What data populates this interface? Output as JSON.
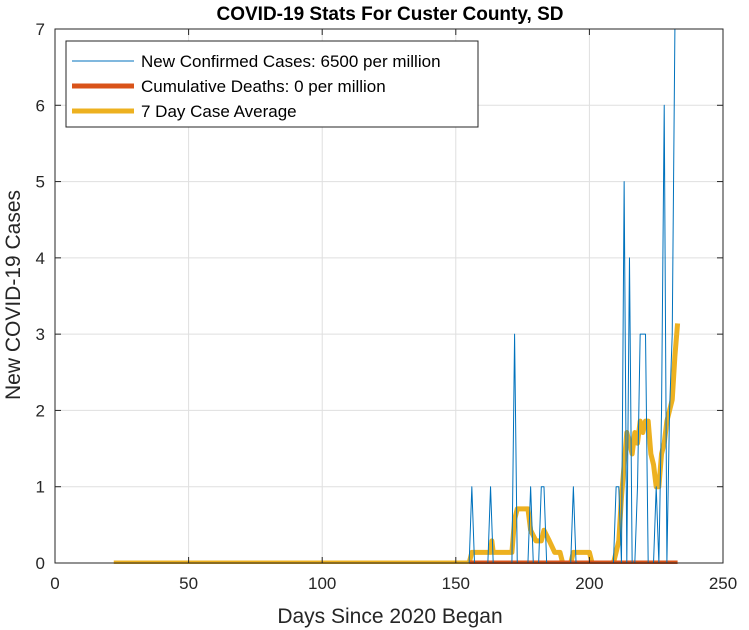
{
  "chart_data": {
    "type": "line",
    "title": "COVID-19 Stats For Custer County, SD",
    "xlabel": "Days Since 2020 Began",
    "ylabel": "New COVID-19 Cases",
    "xlim": [
      0,
      250
    ],
    "ylim": [
      0,
      7
    ],
    "xticks": [
      0,
      50,
      100,
      150,
      200,
      250
    ],
    "yticks": [
      0,
      1,
      2,
      3,
      4,
      5,
      6,
      7
    ],
    "grid": true,
    "legend_position": "top-left",
    "series": [
      {
        "name": "New Confirmed Cases: 6500 per million",
        "color": "#0072BD",
        "line_width": 1,
        "points": [
          [
            155,
            0
          ],
          [
            156,
            1
          ],
          [
            157,
            0
          ],
          [
            162,
            0
          ],
          [
            163,
            1
          ],
          [
            164,
            0
          ],
          [
            171,
            0
          ],
          [
            172,
            3
          ],
          [
            173,
            0
          ],
          [
            177,
            0
          ],
          [
            178,
            1
          ],
          [
            179,
            0
          ],
          [
            181,
            0
          ],
          [
            182,
            1
          ],
          [
            183,
            1
          ],
          [
            184,
            0
          ],
          [
            193,
            0
          ],
          [
            194,
            1
          ],
          [
            195,
            0
          ],
          [
            209,
            0
          ],
          [
            210,
            1
          ],
          [
            211,
            1
          ],
          [
            212,
            0
          ],
          [
            213,
            5
          ],
          [
            214,
            0
          ],
          [
            215,
            4
          ],
          [
            216,
            0
          ],
          [
            217,
            0
          ],
          [
            218,
            1
          ],
          [
            219,
            3
          ],
          [
            220,
            3
          ],
          [
            221,
            3
          ],
          [
            222,
            0
          ],
          [
            224,
            0
          ],
          [
            225,
            1
          ],
          [
            226,
            0
          ],
          [
            227,
            2
          ],
          [
            228,
            6
          ],
          [
            229,
            0
          ],
          [
            230,
            2
          ],
          [
            231,
            3
          ],
          [
            232,
            7
          ]
        ]
      },
      {
        "name": "Cumulative Deaths: 0 per million",
        "color": "#D95319",
        "line_width": 5,
        "points": [
          [
            155,
            0
          ],
          [
            233,
            0
          ]
        ]
      },
      {
        "name": "7 Day Case Average",
        "color": "#EDB120",
        "line_width": 5,
        "points": [
          [
            22,
            0
          ],
          [
            155,
            0
          ],
          [
            156,
            0.14
          ],
          [
            162,
            0.14
          ],
          [
            163,
            0.14
          ],
          [
            163.5,
            0.29
          ],
          [
            164,
            0.14
          ],
          [
            171,
            0.14
          ],
          [
            172,
            0.57
          ],
          [
            173,
            0.71
          ],
          [
            177,
            0.71
          ],
          [
            178,
            0.43
          ],
          [
            180,
            0.29
          ],
          [
            182,
            0.29
          ],
          [
            183,
            0.43
          ],
          [
            185,
            0.29
          ],
          [
            187,
            0.14
          ],
          [
            189,
            0.14
          ],
          [
            190,
            0
          ],
          [
            193,
            0
          ],
          [
            194,
            0.14
          ],
          [
            200,
            0.14
          ],
          [
            201,
            0
          ],
          [
            209,
            0
          ],
          [
            210,
            0.14
          ],
          [
            211,
            0.29
          ],
          [
            212,
            0.86
          ],
          [
            213,
            1.29
          ],
          [
            214,
            1.71
          ],
          [
            215,
            1.57
          ],
          [
            216,
            1.43
          ],
          [
            217,
            1.71
          ],
          [
            218,
            1.57
          ],
          [
            219,
            1.86
          ],
          [
            220,
            1.71
          ],
          [
            221,
            1.86
          ],
          [
            222,
            1.86
          ],
          [
            223,
            1.43
          ],
          [
            224,
            1.29
          ],
          [
            225,
            1.0
          ],
          [
            226,
            1.0
          ],
          [
            227,
            1.43
          ],
          [
            228,
            1.57
          ],
          [
            229,
            1.86
          ],
          [
            230,
            2.0
          ],
          [
            231,
            2.14
          ],
          [
            232,
            2.71
          ],
          [
            233,
            3.14
          ]
        ]
      }
    ]
  }
}
